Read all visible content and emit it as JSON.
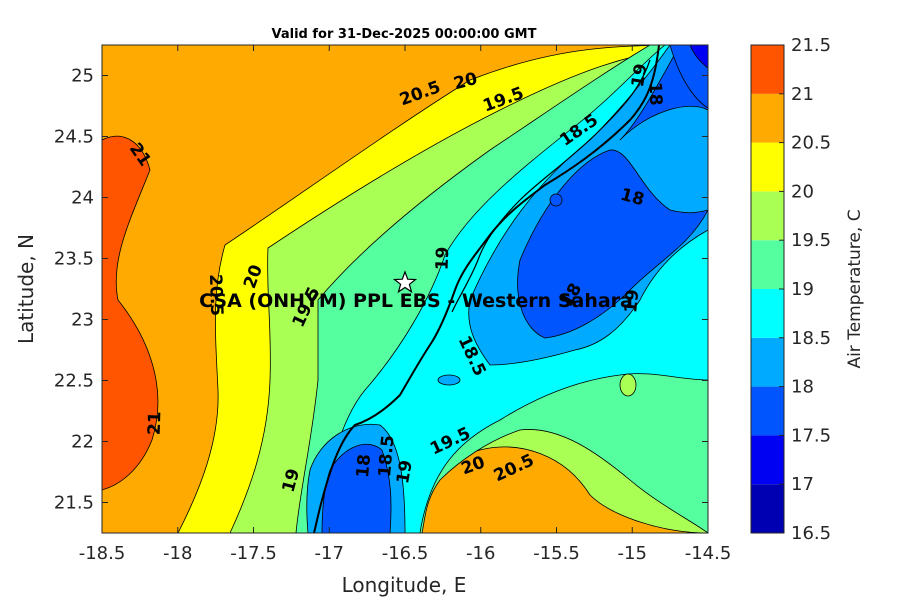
{
  "chart_data": {
    "type": "heatmap",
    "title": "Valid for 31-Dec-2025 00:00:00 GMT",
    "xlabel": "Longitude, E",
    "ylabel": "Latitude, N",
    "xlim": [
      -18.5,
      -14.5
    ],
    "ylim": [
      21.25,
      25.25
    ],
    "x_ticks": [
      -18.5,
      -18,
      -17.5,
      -17,
      -16.5,
      -16,
      -15.5,
      -15,
      -14.5
    ],
    "x_tick_labels": [
      "-18.5",
      "-18",
      "-17.5",
      "-17",
      "-16.5",
      "-16",
      "-15.5",
      "-15",
      "-14.5"
    ],
    "y_ticks": [
      21.5,
      22,
      22.5,
      23,
      23.5,
      24,
      24.5,
      25
    ],
    "y_tick_labels": [
      "21.5",
      "22",
      "22.5",
      "23",
      "23.5",
      "24",
      "24.5",
      "25"
    ],
    "colorbar": {
      "label": "Air Temperature, C",
      "levels": [
        16.5,
        17,
        17.5,
        18,
        18.5,
        19,
        19.5,
        20,
        20.5,
        21,
        21.5
      ],
      "level_labels": [
        "16.5",
        "17",
        "17.5",
        "18",
        "18.5",
        "19",
        "19.5",
        "20",
        "20.5",
        "21",
        "21.5"
      ],
      "colors": [
        "#0000b3",
        "#0000f2",
        "#0055ff",
        "#00aaff",
        "#00ffff",
        "#55ff9f",
        "#aaff55",
        "#ffff00",
        "#ffaa00",
        "#ff5500",
        "#ff0000"
      ]
    },
    "site": {
      "name": "CSA (ONHYM) PPL EBS - Western Sahara",
      "lon": -16.5,
      "lat": 23.3
    },
    "contour_labels": [
      {
        "text": "21",
        "lon": -18.25,
        "lat": 24.35,
        "rot": 55
      },
      {
        "text": "21",
        "lon": -18.15,
        "lat": 22.15,
        "rot": -88
      },
      {
        "text": "20.5",
        "lon": -17.75,
        "lat": 23.2,
        "rot": 88
      },
      {
        "text": "20",
        "lon": -17.5,
        "lat": 23.35,
        "rot": -70
      },
      {
        "text": "19.5",
        "lon": -17.15,
        "lat": 23.1,
        "rot": -65
      },
      {
        "text": "20.5",
        "lon": -16.4,
        "lat": 24.85,
        "rot": -20
      },
      {
        "text": "20",
        "lon": -16.1,
        "lat": 24.95,
        "rot": -15
      },
      {
        "text": "19.5",
        "lon": -15.85,
        "lat": 24.8,
        "rot": -20
      },
      {
        "text": "19",
        "lon": -16.25,
        "lat": 23.5,
        "rot": -88
      },
      {
        "text": "18.5",
        "lon": -15.35,
        "lat": 24.55,
        "rot": -35
      },
      {
        "text": "19",
        "lon": -14.95,
        "lat": 25.0,
        "rot": -80
      },
      {
        "text": "18",
        "lon": -14.85,
        "lat": 24.85,
        "rot": 88
      },
      {
        "text": "18",
        "lon": -15.0,
        "lat": 24.0,
        "rot": 15
      },
      {
        "text": "18",
        "lon": -15.4,
        "lat": 23.2,
        "rot": -60
      },
      {
        "text": "19",
        "lon": -15.0,
        "lat": 23.15,
        "rot": -85
      },
      {
        "text": "18.5",
        "lon": -16.06,
        "lat": 22.7,
        "rot": 65
      },
      {
        "text": "19.5",
        "lon": -16.2,
        "lat": 22.0,
        "rot": -25
      },
      {
        "text": "20",
        "lon": -16.05,
        "lat": 21.8,
        "rot": -20
      },
      {
        "text": "20.5",
        "lon": -15.78,
        "lat": 21.78,
        "rot": -25
      },
      {
        "text": "18.5",
        "lon": -16.62,
        "lat": 21.88,
        "rot": -85
      },
      {
        "text": "18",
        "lon": -16.77,
        "lat": 21.8,
        "rot": -85
      },
      {
        "text": "19",
        "lon": -16.5,
        "lat": 21.75,
        "rot": -80
      },
      {
        "text": "19",
        "lon": -17.25,
        "lat": 21.68,
        "rot": -75
      }
    ]
  }
}
